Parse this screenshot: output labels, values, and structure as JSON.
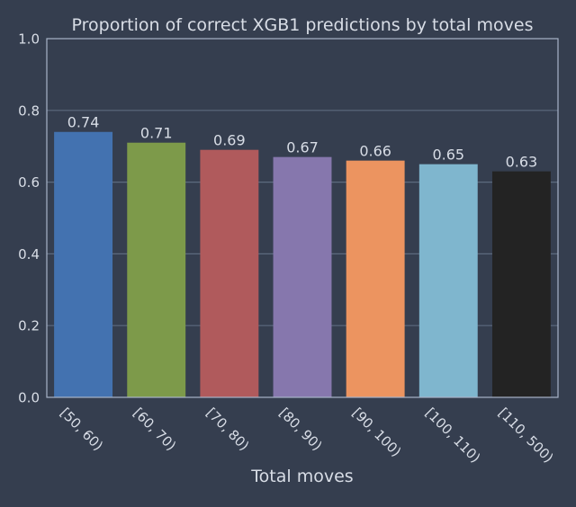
{
  "chart_data": {
    "type": "bar",
    "title": "Proportion of correct XGB1 predictions by total moves",
    "xlabel": "Total moves",
    "ylabel": "",
    "categories": [
      "[50, 60)",
      "[60, 70)",
      "[70, 80)",
      "[80, 90)",
      "[90, 100)",
      "[100, 110)",
      "[110, 500)"
    ],
    "values": [
      0.74,
      0.71,
      0.69,
      0.67,
      0.66,
      0.65,
      0.63
    ],
    "value_labels": [
      "0.74",
      "0.71",
      "0.69",
      "0.67",
      "0.66",
      "0.65",
      "0.63"
    ],
    "bar_colors": [
      "#4372b0",
      "#7d9a4a",
      "#b05a5c",
      "#8677ad",
      "#ec9460",
      "#7fb6ce",
      "#232323"
    ],
    "ylim": [
      0,
      1.0
    ],
    "yticks": [
      0.0,
      0.2,
      0.4,
      0.6,
      0.8,
      1.0
    ],
    "ytick_labels": [
      "0.0",
      "0.2",
      "0.4",
      "0.6",
      "0.8",
      "1.0"
    ],
    "grid": true,
    "legend": "none"
  },
  "colors": {
    "background": "#353e4f",
    "axes_frame": "#a8b4c8",
    "grid": "#5d6a7f",
    "text": "#d8dde6"
  }
}
